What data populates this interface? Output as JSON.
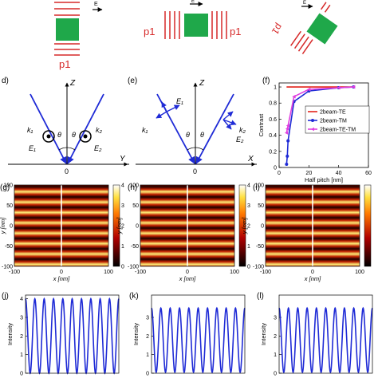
{
  "top_row": {
    "left": {
      "e_label": "E",
      "p_label": "p1"
    },
    "middle": {
      "e_label": "E",
      "p_left": "p1",
      "p_right": "p1"
    },
    "right": {
      "e_label": "E",
      "p_label": "p1"
    }
  },
  "panel_d": {
    "letter": "d)",
    "z_label": "Z",
    "y_label": "Y",
    "origin": "0",
    "k1": "k₁",
    "k2": "k₂",
    "e1": "E₁",
    "e2": "E₂",
    "theta": "θ"
  },
  "panel_e": {
    "letter": "(e)",
    "z_label": "Z",
    "x_label": "X",
    "origin": "0",
    "k1": "k₁",
    "k2": "k₂",
    "e1": "E₁",
    "e2": "E₂",
    "theta": "θ"
  },
  "panel_f": {
    "letter": "(f)",
    "chart_data": {
      "type": "line",
      "xlabel": "Half pitch [nm]",
      "ylabel": "Contrast",
      "xlim": [
        0,
        60
      ],
      "ylim": [
        0,
        1.05
      ],
      "xticks": [
        "0",
        "20",
        "40",
        "60"
      ],
      "yticks": [
        "0",
        "0.2",
        "0.4",
        "0.6",
        "0.8",
        "1"
      ],
      "legend_position": "center-right",
      "series": [
        {
          "name": "2beam-TE",
          "color": "#e2231a",
          "marker": "none",
          "x": [
            5,
            10,
            20,
            40,
            50
          ],
          "y": [
            1,
            1,
            1,
            1,
            1
          ]
        },
        {
          "name": "2beam-TM",
          "color": "#1f2bd6",
          "marker": "circle",
          "x": [
            5,
            5.5,
            6,
            10,
            20,
            40,
            50
          ],
          "y": [
            0.04,
            0.14,
            0.33,
            0.82,
            0.95,
            0.99,
            1
          ]
        },
        {
          "name": "2beam-TE-TM",
          "color": "#e040e0",
          "marker": "triangle",
          "x": [
            5,
            5.5,
            6,
            10,
            20,
            40,
            50
          ],
          "y": [
            0.43,
            0.48,
            0.52,
            0.88,
            0.97,
            0.99,
            1
          ]
        }
      ]
    }
  },
  "heatmaps": {
    "letters": [
      "(g)",
      "(h)",
      "(i)"
    ],
    "xlabel": "x [nm]",
    "ylabel": "y [nm]",
    "xticks": [
      "-100",
      "0",
      "100"
    ],
    "yticks": [
      "-100",
      "-50",
      "0",
      "50",
      "100"
    ],
    "colorbar_ticks": [
      "0",
      "1",
      "2",
      "3",
      "4"
    ],
    "colorbar_visible_right": [
      "4",
      "3",
      "2",
      "1"
    ],
    "chart_data": {
      "type": "heatmap",
      "x_range": [
        -100,
        100
      ],
      "y_range": [
        -100,
        100
      ],
      "colormap": "hot",
      "value_range": [
        0,
        4
      ],
      "fringe_count": 10
    }
  },
  "intensity": {
    "letters": [
      "(j)",
      "(k)",
      "(l)"
    ],
    "ylabel": "Intensity",
    "chart_data": [
      {
        "type": "line",
        "yticks": [
          "0",
          "1",
          "2",
          "3",
          "4"
        ],
        "ylim": [
          0,
          4.2
        ],
        "y_min": 0,
        "y_max": 4,
        "periods": 10,
        "color": "#1f2bd6"
      },
      {
        "type": "line",
        "yticks": [
          "0",
          "1",
          "2",
          "3"
        ],
        "ylim": [
          0,
          4.2
        ],
        "y_min": 0.05,
        "y_max": 3.5,
        "periods": 10,
        "color": "#1f2bd6"
      },
      {
        "type": "line",
        "yticks": [
          "0",
          "1",
          "2",
          "3"
        ],
        "ylim": [
          0,
          4.2
        ],
        "y_min": 0.05,
        "y_max": 3.5,
        "periods": 10,
        "color": "#1f2bd6"
      }
    ]
  }
}
